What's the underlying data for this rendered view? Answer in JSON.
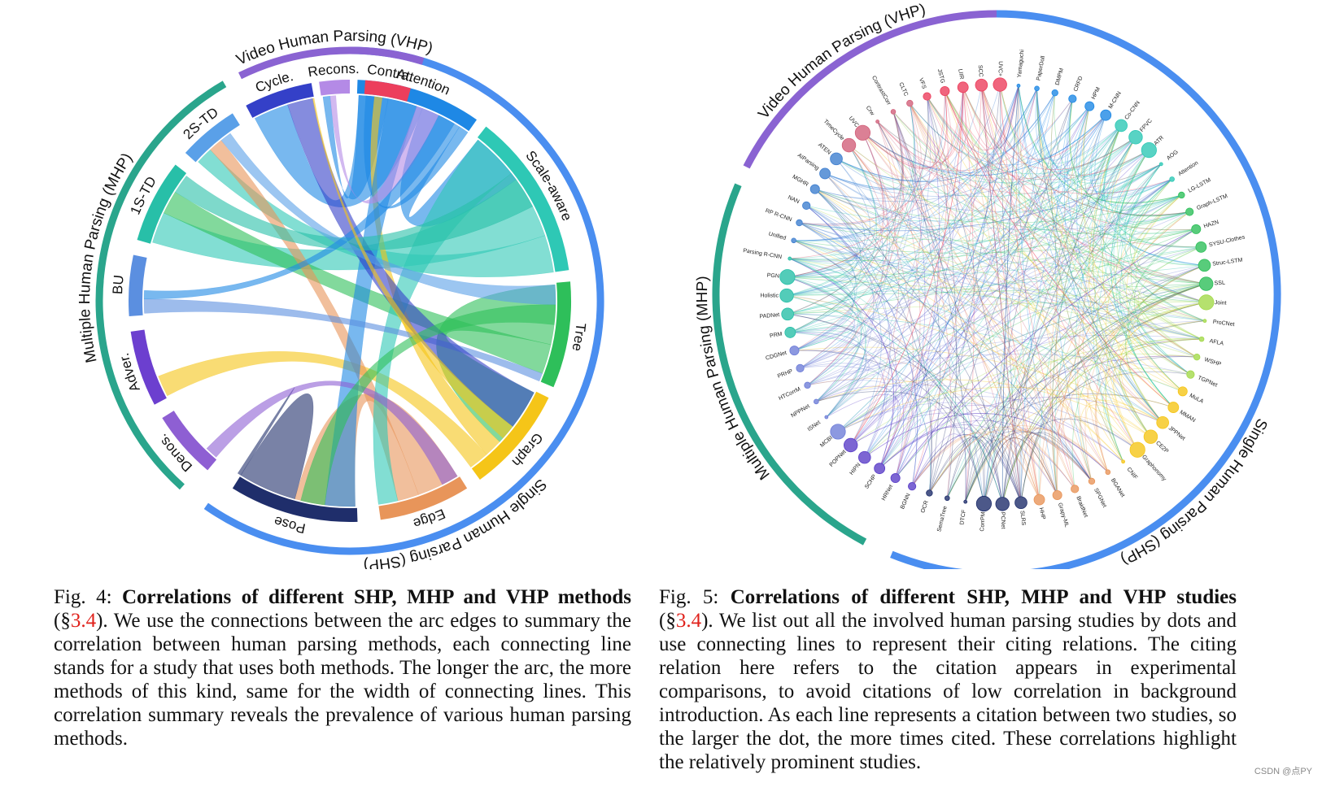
{
  "fig4": {
    "groups": [
      {
        "name": "Video Human Parsing (VHP)",
        "color": "#8a63d2"
      },
      {
        "name": "Multiple Human Parsing (MHP)",
        "color": "#2aa58c"
      },
      {
        "name": "Single Human Parsing (SHP)",
        "color": "#4a8ef0"
      }
    ],
    "segments": [
      {
        "label": "Attention",
        "color": "#1e88e5",
        "group": "SHP"
      },
      {
        "label": "Scale-aware",
        "color": "#2ec8b5",
        "group": "SHP"
      },
      {
        "label": "Tree",
        "color": "#2ebf5a",
        "group": "SHP"
      },
      {
        "label": "Graph",
        "color": "#f5c518",
        "group": "SHP"
      },
      {
        "label": "Edge",
        "color": "#e8955a",
        "group": "SHP"
      },
      {
        "label": "Pose",
        "color": "#1f2e6b",
        "group": "SHP"
      },
      {
        "label": "Denos.",
        "color": "#8e5fd3",
        "group": "MHP"
      },
      {
        "label": "Adver.",
        "color": "#6c3fcf",
        "group": "MHP"
      },
      {
        "label": "BU",
        "color": "#5b8fe0",
        "group": "MHP"
      },
      {
        "label": "1S-TD",
        "color": "#28bfa8",
        "group": "MHP"
      },
      {
        "label": "2S-TD",
        "color": "#5aa0e8",
        "group": "MHP"
      },
      {
        "label": "Cycle.",
        "color": "#3440c8",
        "group": "VHP"
      },
      {
        "label": "Recons.",
        "color": "#b48ae6",
        "group": "VHP"
      },
      {
        "label": "Contra.",
        "color": "#ec3e5c",
        "group": "VHP"
      }
    ]
  },
  "fig5": {
    "groups": [
      {
        "name": "Video Human Parsing (VHP)",
        "color": "#8a63d2"
      },
      {
        "name": "Multiple Human Parsing (MHP)",
        "color": "#2aa58c"
      },
      {
        "name": "Single Human Parsing (SHP)",
        "color": "#4a8ef0"
      }
    ],
    "studies": [
      "Yamaguchi",
      "PaperDoll",
      "DMPM",
      "CRFD",
      "HPM",
      "M-CNN",
      "Co-CNN",
      "FPVC",
      "ATR",
      "AOG",
      "Attention",
      "LG-LSTM",
      "Graph-LSTM",
      "HAZN",
      "SYSU-Clothes",
      "Struc-LSTM",
      "SSL",
      "Joint",
      "ProCNet",
      "AFLA",
      "WSHP",
      "TGPNet",
      "MuLA",
      "MMAN",
      "JPPNet",
      "CE2P",
      "Graphonomy",
      "CNIF",
      "BGANet",
      "SPGNet",
      "BraidNet",
      "Grapy-ML",
      "HHP",
      "SLRS",
      "PCNet",
      "CorrPM",
      "DTCF",
      "SemaTree",
      "OCR",
      "BGNN",
      "HRNet",
      "SCHP",
      "HIPN",
      "POPNet",
      "MCBI",
      "ISNet",
      "NPPNet",
      "HTCorrM",
      "PRHP",
      "CDGNet",
      "PRM",
      "PADNet",
      "Holistic",
      "PGN",
      "Parsing R-CNN",
      "Unified",
      "RP R-CNN",
      "NAN",
      "MGHR",
      "AIParsing",
      "ATEN",
      "TimeCycle",
      "UVC",
      "Crw",
      "ContrastCorr",
      "CLTC",
      "VFS",
      "JSTG",
      "LIIR",
      "SCC",
      "UVC+"
    ]
  },
  "caption4": {
    "prefix": "Fig. 4: ",
    "title": "Correlations of different SHP, MHP and VHP methods",
    "open": " (§",
    "ref": "3.4",
    "body": "). We use the connections between the arc edges to summary the correlation between human parsing methods, each connecting line stands for a study that uses both methods. The longer the arc, the more methods of this kind, same for the width of connecting lines. This correlation summary reveals the prevalence of various human parsing methods."
  },
  "caption5": {
    "prefix": "Fig. 5: ",
    "title": "Correlations of different SHP, MHP and VHP studies",
    "open": " (§",
    "ref": "3.4",
    "body": "). We list out all the involved human parsing studies by dots and use connecting lines to represent their citing relations. The citing relation here refers to the citation appears in experimental comparisons, to avoid citations of low correlation in background introduction. As each line represents a citation between two studies, so the larger the dot, the more times cited. These correlations highlight the relatively prominent studies."
  },
  "watermark": "CSDN @点PY"
}
